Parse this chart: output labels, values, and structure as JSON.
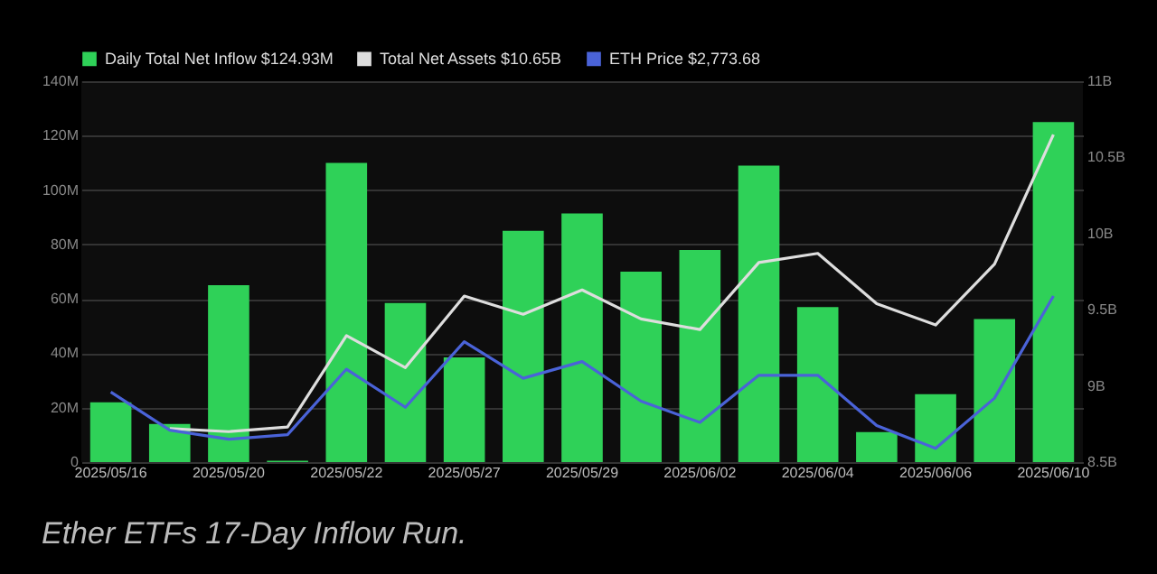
{
  "chart_data": {
    "type": "bar",
    "annotations": [
      "Ether ETFs 17-Day Inflow Run."
    ],
    "categories": [
      "2025/05/16",
      null,
      "2025/05/20",
      null,
      "2025/05/22",
      null,
      "2025/05/27",
      null,
      "2025/05/29",
      null,
      "2025/06/02",
      null,
      "2025/06/04",
      null,
      "2025/06/06",
      null,
      "2025/06/10"
    ],
    "series": [
      {
        "name": "Daily Total Net Inflow $124.93M",
        "color": "#2fd158",
        "values": [
          22,
          14,
          65,
          0.5,
          110,
          58.5,
          38.5,
          85,
          91.4,
          70,
          78,
          109,
          57,
          11,
          25,
          52.6,
          125
        ]
      },
      {
        "type": "line",
        "axis": "y2",
        "name": "Total Net Assets $10.65B",
        "color": "#dddddd",
        "values": [
          null,
          8.72,
          8.7,
          8.73,
          9.33,
          9.12,
          9.59,
          9.47,
          9.63,
          9.44,
          9.37,
          9.81,
          9.87,
          9.54,
          9.4,
          9.8,
          10.65
        ]
      },
      {
        "type": "line",
        "axis": "y2",
        "name": "ETH Price $2,773.68",
        "color": "#4a63d8",
        "values": [
          8.96,
          8.71,
          8.65,
          8.68,
          9.11,
          8.86,
          9.29,
          9.05,
          9.16,
          8.9,
          8.76,
          9.07,
          9.07,
          8.74,
          8.59,
          8.92,
          9.59
        ]
      }
    ],
    "ylim": [
      0,
      140
    ],
    "yticks": [
      0,
      {
        "value": 20,
        "label": "20M"
      },
      {
        "value": 40,
        "label": "40M"
      },
      {
        "value": 60,
        "label": "60M"
      },
      {
        "value": 80,
        "label": "80M"
      },
      {
        "value": 100,
        "label": "100M"
      },
      {
        "value": 120,
        "label": "120M"
      },
      {
        "value": 140,
        "label": "140M"
      }
    ],
    "y2lim": [
      8.5,
      11
    ],
    "y2ticks": [
      {
        "value": 8.5,
        "label": "8.5B"
      },
      {
        "value": 9,
        "label": "9B"
      },
      {
        "value": 9.5,
        "label": "9.5B"
      },
      {
        "value": 10,
        "label": "10B"
      },
      {
        "value": 10.5,
        "label": "10.5B"
      },
      {
        "value": 11,
        "label": "11B"
      }
    ],
    "grid": "y",
    "legend": "top left"
  }
}
